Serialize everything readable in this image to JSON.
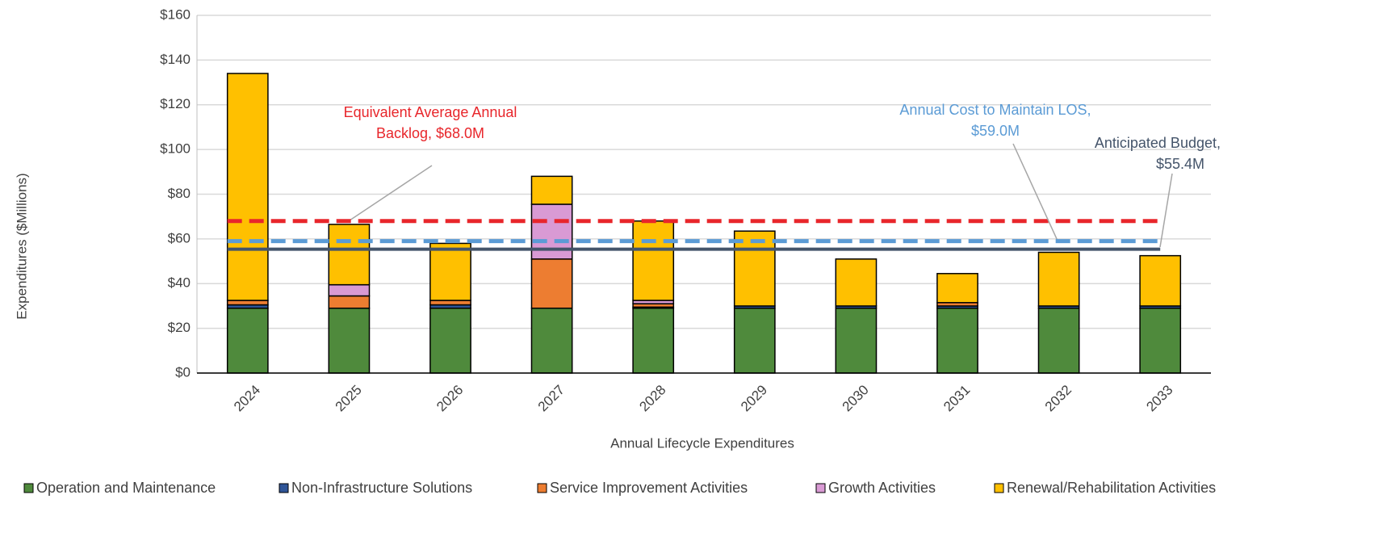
{
  "chart_data": {
    "type": "stacked_bar",
    "x_label": "Annual  Lifecycle Expenditures",
    "y_label": "Expenditures ($Millions)",
    "categories": [
      "2024",
      "2025",
      "2026",
      "2027",
      "2028",
      "2029",
      "2030",
      "2031",
      "2032",
      "2033"
    ],
    "series": [
      {
        "name": "Operation and Maintenance",
        "color": "#4f8a3c",
        "values": [
          29,
          29,
          29,
          29,
          29,
          29,
          29,
          29,
          29,
          29
        ]
      },
      {
        "name": "Non-Infrastructure Solutions",
        "color": "#2f5597",
        "values": [
          1.5,
          0,
          1.5,
          0,
          0.5,
          1,
          1,
          1,
          1,
          1
        ]
      },
      {
        "name": "Service Improvement Activities",
        "color": "#ed7d31",
        "values": [
          2,
          5.5,
          2,
          22,
          1.5,
          0,
          0,
          1.5,
          0,
          0
        ]
      },
      {
        "name": "Growth Activities",
        "color": "#d99ad4",
        "values": [
          0,
          5,
          0,
          24.5,
          1.5,
          0,
          0,
          0,
          0,
          0
        ]
      },
      {
        "name": "Renewal/Rehabilitation Activities",
        "color": "#ffc000",
        "values": [
          101.5,
          27,
          25.5,
          12.5,
          35.5,
          33.5,
          21,
          13,
          24,
          22.5
        ]
      }
    ],
    "ylim": [
      0,
      160
    ],
    "yticks": [
      {
        "value": 0,
        "label": "$0"
      },
      {
        "value": 20,
        "label": "$20"
      },
      {
        "value": 40,
        "label": "$40"
      },
      {
        "value": 60,
        "label": "$60"
      },
      {
        "value": 80,
        "label": "$80"
      },
      {
        "value": 100,
        "label": "$100"
      },
      {
        "value": 120,
        "label": "$120"
      },
      {
        "value": 140,
        "label": "$140"
      },
      {
        "value": 160,
        "label": "$160"
      }
    ],
    "grid": true,
    "legend": "bottom",
    "reference_lines": [
      {
        "value": 68,
        "color": "#e8262b",
        "style": "dashed",
        "label": [
          "Equivalent Average Annual",
          "Backlog, $68.0M"
        ]
      },
      {
        "value": 59,
        "color": "#5b9bd5",
        "style": "dashed",
        "label": [
          "Annual Cost to Maintain  LOS,",
          "$59.0M"
        ]
      },
      {
        "value": 55.4,
        "color": "#44546a",
        "style": "solid",
        "label": [
          "Anticipated Budget,",
          "$55.4M"
        ]
      }
    ]
  }
}
